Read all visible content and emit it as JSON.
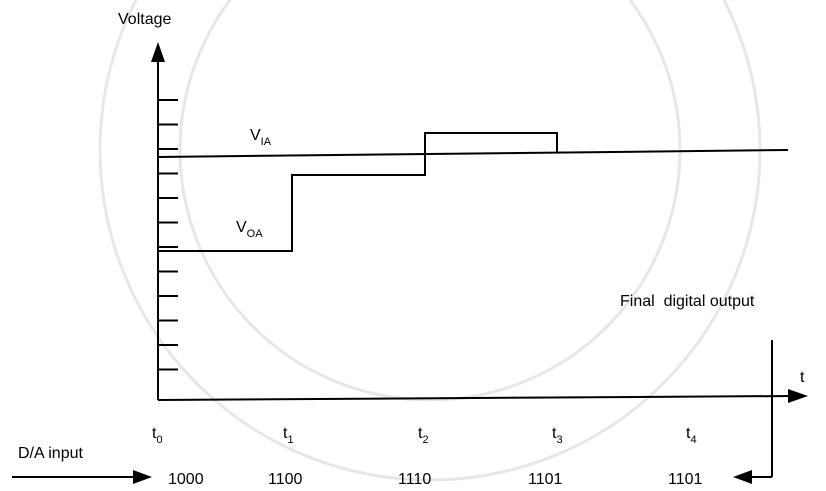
{
  "axis": {
    "y_label": "Voltage",
    "x_label": "t"
  },
  "signals": {
    "input": {
      "main": "V",
      "sub": "IA"
    },
    "output": {
      "main": "V",
      "sub": "OA"
    }
  },
  "times": [
    {
      "main": "t",
      "sub": "0"
    },
    {
      "main": "t",
      "sub": "1"
    },
    {
      "main": "t",
      "sub": "2"
    },
    {
      "main": "t",
      "sub": "3"
    },
    {
      "main": "t",
      "sub": "4"
    }
  ],
  "input_label": "D/A input",
  "codes": [
    "1000",
    "1100",
    "1110",
    "1101",
    "1101"
  ],
  "final_label": "Final  digital output"
}
